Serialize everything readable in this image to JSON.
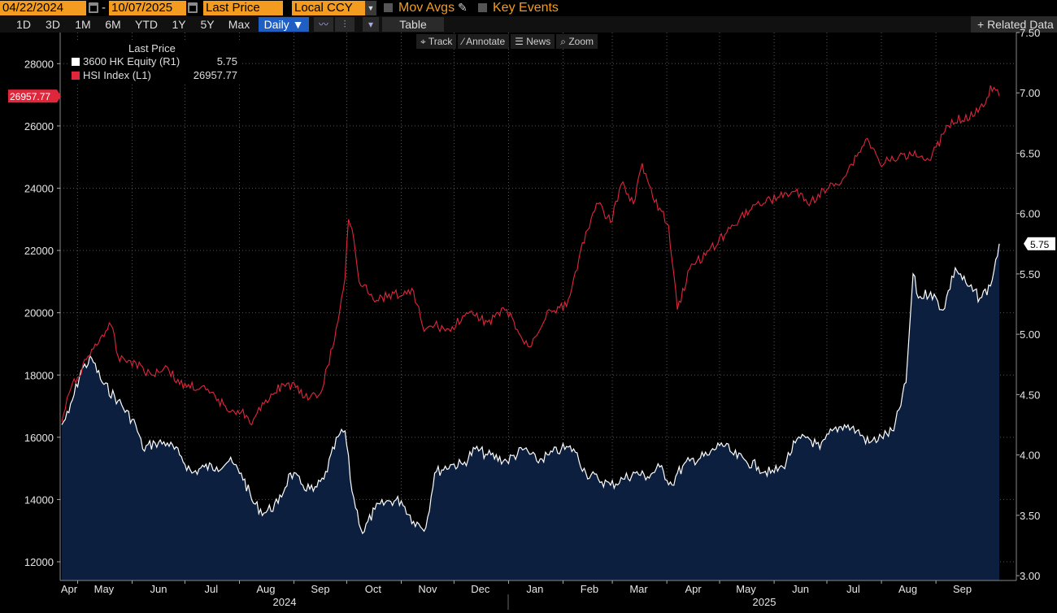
{
  "toolbar": {
    "start_date": "04/22/2024",
    "date_separator": "-",
    "end_date": "10/07/2025",
    "field": "Last Price",
    "currency": "Local CCY",
    "mov_avgs": "Mov Avgs",
    "key_events": "Key Events",
    "ranges": [
      "1D",
      "3D",
      "1M",
      "6M",
      "YTD",
      "1Y",
      "5Y",
      "Max"
    ],
    "frequency": "Daily ▼",
    "table": "Table",
    "related": "+ Related Data"
  },
  "chart_tools": [
    "Track",
    "Annotate",
    "News",
    "Zoom"
  ],
  "legend": {
    "header": "Last Price",
    "rows": [
      {
        "label": "3600 HK Equity  (R1)",
        "value": "5.75",
        "color": "#ffffff"
      },
      {
        "label": "HSI Index  (L1)",
        "value": "26957.77",
        "color": "#e0263b"
      }
    ]
  },
  "colors": {
    "background": "#000000",
    "hsi": "#e0263b",
    "equity_line": "#ffffff",
    "equity_fill": "#0c1f3f",
    "orange": "#f39c1f"
  },
  "chart_data": {
    "type": "line",
    "x_start": "2024-04-22",
    "x_end": "2025-10-07",
    "x_month_labels": [
      "Apr",
      "May",
      "Jun",
      "Jul",
      "Aug",
      "Sep",
      "Oct",
      "Nov",
      "Dec",
      "Jan",
      "Feb",
      "Mar",
      "Apr",
      "May",
      "Jun",
      "Jul",
      "Aug",
      "Sep"
    ],
    "year_labels": [
      "2024",
      "2025"
    ],
    "left_axis": {
      "series": "HSI Index (L1)",
      "ylim": [
        11400,
        29000
      ],
      "ticks": [
        12000,
        14000,
        16000,
        18000,
        20000,
        22000,
        24000,
        26000,
        28000
      ],
      "last_label": "26957.77"
    },
    "right_axis": {
      "series": "3600 HK Equity (R1)",
      "ylim": [
        2.96,
        7.5
      ],
      "ticks": [
        "3.00",
        "3.50",
        "4.00",
        "4.50",
        "5.00",
        "5.50",
        "6.00",
        "6.50",
        "7.00",
        "7.50"
      ],
      "last_label": "5.75"
    },
    "series": [
      {
        "name": "HSI Index (L1)",
        "axis": "left",
        "style": "line",
        "points": [
          [
            "2024-04-22",
            16500
          ],
          [
            "2024-04-26",
            17400
          ],
          [
            "2024-05-06",
            18500
          ],
          [
            "2024-05-14",
            19200
          ],
          [
            "2024-05-20",
            19600
          ],
          [
            "2024-05-24",
            18600
          ],
          [
            "2024-06-03",
            18400
          ],
          [
            "2024-06-12",
            18000
          ],
          [
            "2024-06-20",
            18300
          ],
          [
            "2024-06-28",
            17700
          ],
          [
            "2024-07-10",
            17600
          ],
          [
            "2024-07-24",
            17000
          ],
          [
            "2024-08-02",
            16800
          ],
          [
            "2024-08-05",
            16700
          ],
          [
            "2024-08-08",
            16400
          ],
          [
            "2024-08-16",
            17200
          ],
          [
            "2024-08-26",
            17700
          ],
          [
            "2024-09-02",
            17600
          ],
          [
            "2024-09-09",
            17200
          ],
          [
            "2024-09-16",
            17400
          ],
          [
            "2024-09-24",
            19100
          ],
          [
            "2024-09-30",
            21100
          ],
          [
            "2024-10-02",
            23000
          ],
          [
            "2024-10-04",
            22700
          ],
          [
            "2024-10-08",
            21000
          ],
          [
            "2024-10-11",
            20900
          ],
          [
            "2024-10-18",
            20400
          ],
          [
            "2024-10-25",
            20600
          ],
          [
            "2024-11-04",
            20600
          ],
          [
            "2024-11-08",
            20700
          ],
          [
            "2024-11-14",
            19400
          ],
          [
            "2024-11-20",
            19600
          ],
          [
            "2024-11-29",
            19400
          ],
          [
            "2024-12-06",
            19900
          ],
          [
            "2024-12-13",
            19900
          ],
          [
            "2024-12-20",
            19700
          ],
          [
            "2024-12-31",
            20100
          ],
          [
            "2025-01-10",
            19000
          ],
          [
            "2025-01-13",
            18900
          ],
          [
            "2025-01-24",
            20100
          ],
          [
            "2025-02-03",
            20200
          ],
          [
            "2025-02-14",
            22600
          ],
          [
            "2025-02-21",
            23500
          ],
          [
            "2025-02-28",
            22900
          ],
          [
            "2025-03-07",
            24200
          ],
          [
            "2025-03-13",
            23500
          ],
          [
            "2025-03-18",
            24800
          ],
          [
            "2025-03-24",
            23700
          ],
          [
            "2025-04-02",
            22800
          ],
          [
            "2025-04-07",
            20100
          ],
          [
            "2025-04-14",
            21400
          ],
          [
            "2025-04-25",
            22000
          ],
          [
            "2025-05-07",
            22700
          ],
          [
            "2025-05-13",
            23100
          ],
          [
            "2025-05-22",
            23500
          ],
          [
            "2025-06-03",
            23700
          ],
          [
            "2025-06-13",
            23900
          ],
          [
            "2025-06-20",
            23500
          ],
          [
            "2025-07-02",
            24000
          ],
          [
            "2025-07-10",
            24300
          ],
          [
            "2025-07-24",
            25600
          ],
          [
            "2025-07-31",
            24800
          ],
          [
            "2025-08-08",
            24900
          ],
          [
            "2025-08-20",
            25200
          ],
          [
            "2025-08-28",
            24900
          ],
          [
            "2025-09-10",
            26200
          ],
          [
            "2025-09-22",
            26300
          ],
          [
            "2025-09-30",
            26900
          ],
          [
            "2025-10-02",
            27300
          ],
          [
            "2025-10-07",
            26957.77
          ]
        ]
      },
      {
        "name": "3600 HK Equity (R1)",
        "axis": "right",
        "style": "area",
        "points": [
          [
            "2024-04-22",
            4.25
          ],
          [
            "2024-04-26",
            4.35
          ],
          [
            "2024-05-03",
            4.7
          ],
          [
            "2024-05-09",
            4.8
          ],
          [
            "2024-05-15",
            4.6
          ],
          [
            "2024-05-24",
            4.45
          ],
          [
            "2024-06-03",
            4.25
          ],
          [
            "2024-06-07",
            4.05
          ],
          [
            "2024-06-14",
            4.1
          ],
          [
            "2024-06-21",
            4.1
          ],
          [
            "2024-06-28",
            4.0
          ],
          [
            "2024-07-05",
            3.85
          ],
          [
            "2024-07-12",
            3.9
          ],
          [
            "2024-07-19",
            3.9
          ],
          [
            "2024-07-26",
            3.95
          ],
          [
            "2024-08-02",
            3.85
          ],
          [
            "2024-08-09",
            3.6
          ],
          [
            "2024-08-15",
            3.52
          ],
          [
            "2024-08-23",
            3.6
          ],
          [
            "2024-08-30",
            3.85
          ],
          [
            "2024-09-06",
            3.75
          ],
          [
            "2024-09-12",
            3.7
          ],
          [
            "2024-09-18",
            3.8
          ],
          [
            "2024-09-26",
            4.15
          ],
          [
            "2024-09-30",
            4.2
          ],
          [
            "2024-10-04",
            3.7
          ],
          [
            "2024-10-10",
            3.35
          ],
          [
            "2024-10-17",
            3.55
          ],
          [
            "2024-10-25",
            3.62
          ],
          [
            "2024-11-01",
            3.62
          ],
          [
            "2024-11-08",
            3.45
          ],
          [
            "2024-11-15",
            3.4
          ],
          [
            "2024-11-20",
            3.85
          ],
          [
            "2024-11-29",
            3.92
          ],
          [
            "2024-12-06",
            3.92
          ],
          [
            "2024-12-13",
            4.05
          ],
          [
            "2024-12-20",
            4.0
          ],
          [
            "2024-12-31",
            3.95
          ],
          [
            "2025-01-10",
            4.05
          ],
          [
            "2025-01-17",
            3.95
          ],
          [
            "2025-01-24",
            4.0
          ],
          [
            "2025-01-31",
            4.05
          ],
          [
            "2025-02-07",
            4.05
          ],
          [
            "2025-02-14",
            3.85
          ],
          [
            "2025-02-21",
            3.8
          ],
          [
            "2025-02-28",
            3.75
          ],
          [
            "2025-03-07",
            3.8
          ],
          [
            "2025-03-14",
            3.85
          ],
          [
            "2025-03-21",
            3.82
          ],
          [
            "2025-03-28",
            3.9
          ],
          [
            "2025-04-04",
            3.75
          ],
          [
            "2025-04-07",
            3.85
          ],
          [
            "2025-04-14",
            3.95
          ],
          [
            "2025-04-25",
            4.0
          ],
          [
            "2025-05-02",
            4.1
          ],
          [
            "2025-05-09",
            4.0
          ],
          [
            "2025-05-16",
            3.95
          ],
          [
            "2025-05-23",
            3.9
          ],
          [
            "2025-05-30",
            3.85
          ],
          [
            "2025-06-06",
            3.9
          ],
          [
            "2025-06-13",
            4.1
          ],
          [
            "2025-06-20",
            4.15
          ],
          [
            "2025-06-27",
            4.05
          ],
          [
            "2025-07-04",
            4.2
          ],
          [
            "2025-07-11",
            4.25
          ],
          [
            "2025-07-18",
            4.2
          ],
          [
            "2025-07-25",
            4.1
          ],
          [
            "2025-08-01",
            4.15
          ],
          [
            "2025-08-08",
            4.2
          ],
          [
            "2025-08-15",
            4.6
          ],
          [
            "2025-08-19",
            5.5
          ],
          [
            "2025-08-22",
            5.3
          ],
          [
            "2025-08-29",
            5.35
          ],
          [
            "2025-09-05",
            5.2
          ],
          [
            "2025-09-12",
            5.55
          ],
          [
            "2025-09-19",
            5.4
          ],
          [
            "2025-09-26",
            5.3
          ],
          [
            "2025-10-02",
            5.4
          ],
          [
            "2025-10-07",
            5.75
          ]
        ]
      }
    ]
  }
}
